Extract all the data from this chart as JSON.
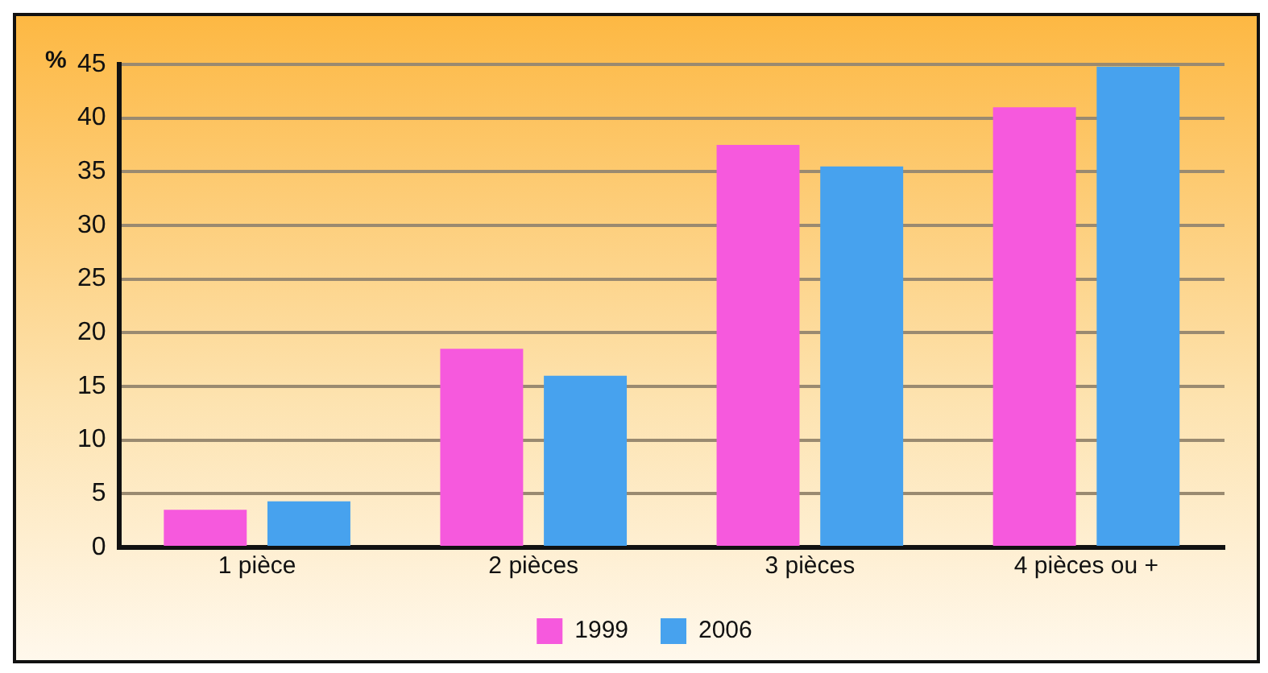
{
  "chart_data": {
    "type": "bar",
    "ylabel": "%",
    "categories": [
      "1 pièce",
      "2 pièces",
      "3 pièces",
      "4 pièces ou +"
    ],
    "series": [
      {
        "name": "1999",
        "color": "#f659dd",
        "values": [
          3.5,
          18.5,
          37.5,
          41
        ]
      },
      {
        "name": "2006",
        "color": "#47a2ee",
        "values": [
          4.3,
          16,
          35.5,
          44.8
        ]
      }
    ],
    "ylim": [
      0,
      45
    ],
    "yticks": [
      0,
      5,
      10,
      15,
      20,
      25,
      30,
      35,
      40,
      45
    ],
    "grid": "y",
    "legend": "bottom"
  }
}
